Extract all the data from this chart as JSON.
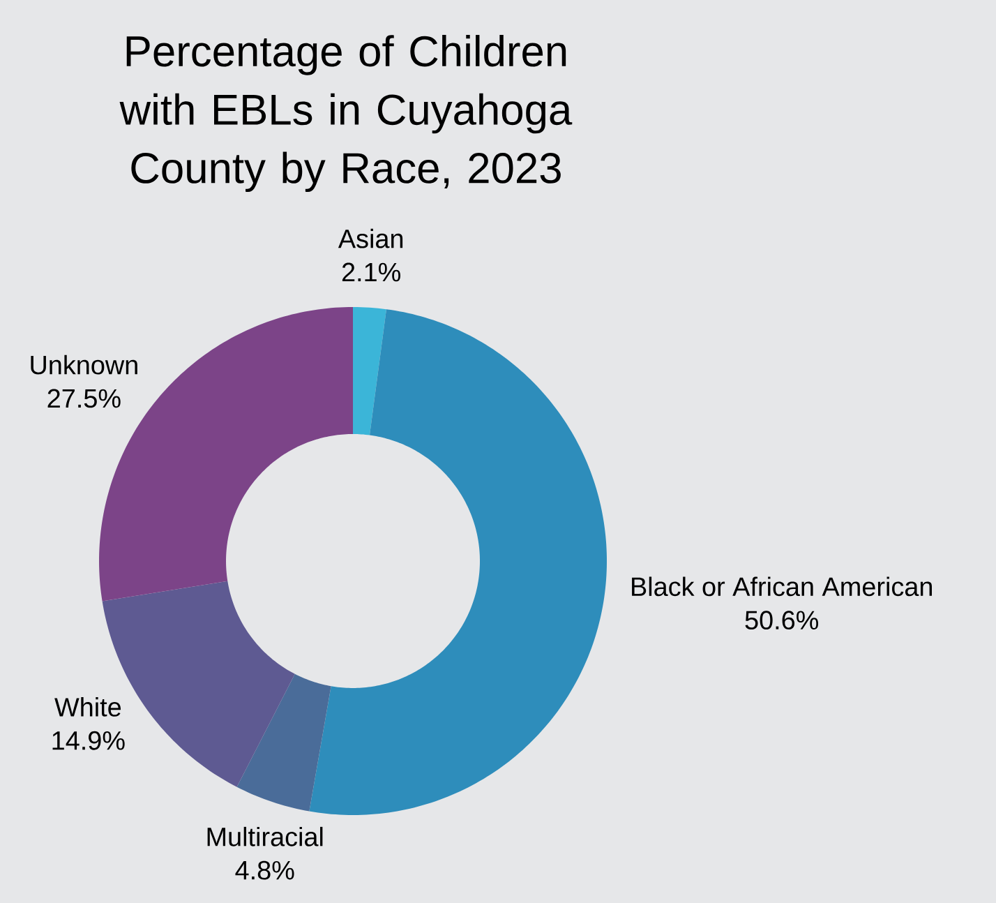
{
  "chart_data": {
    "type": "donut",
    "title": "Percentage of Children with EBLs in Cuyahoga County by Race, 2023",
    "categories": [
      "Asian",
      "Black or African American",
      "Multiracial",
      "White",
      "Unknown"
    ],
    "values": [
      2.1,
      50.6,
      4.8,
      14.9,
      27.5
    ],
    "value_labels": [
      "2.1%",
      "50.6%",
      "4.8%",
      "14.9%",
      "27.5%"
    ],
    "colors": [
      "#3bb5d8",
      "#2e8dbb",
      "#4a6c99",
      "#5e5a92",
      "#7c4488"
    ]
  }
}
